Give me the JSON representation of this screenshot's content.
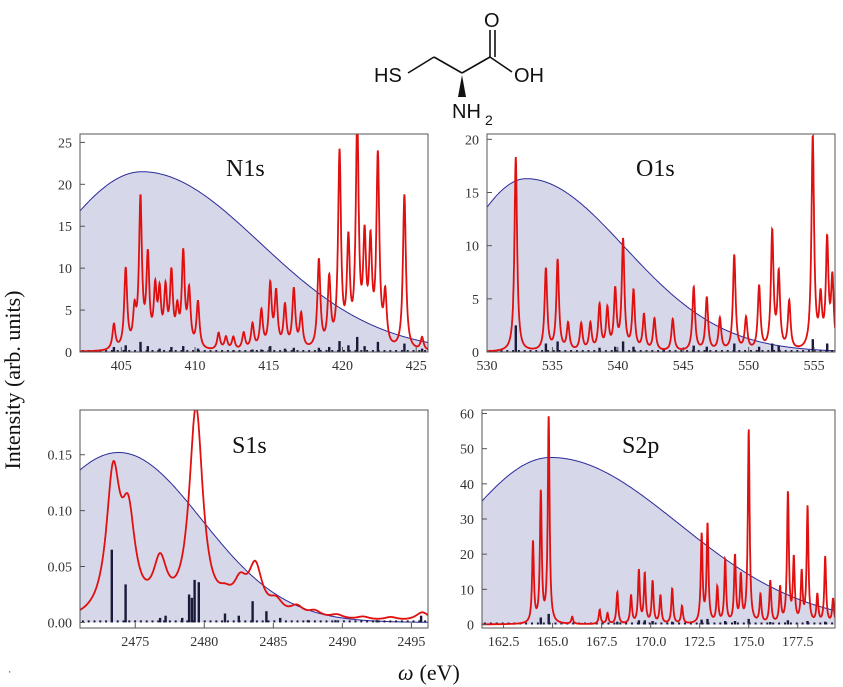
{
  "molecule": {
    "label_hs": "HS",
    "label_o": "O",
    "label_oh": "OH",
    "label_nh": "NH",
    "label_sub2": "2"
  },
  "figure": {
    "ylabel": "Intensity (arb. units)",
    "xlabel_symbol": "ω",
    "xlabel_unit": "(eV)",
    "corner_mark": "⸱"
  },
  "colors": {
    "envelope_fill": "#d7d7ea",
    "envelope_line": "#2a2a9a",
    "spectrum": "#e01010",
    "sticks": "#1a1a3a"
  },
  "chart_data": [
    {
      "type": "line",
      "title": "N1s",
      "xlim": [
        402.2,
        425.8
      ],
      "ylim": [
        0,
        26
      ],
      "xticks": [
        405,
        410,
        415,
        420,
        425
      ],
      "xtick_labels": [
        "405",
        "410",
        "415",
        "420",
        "425"
      ],
      "yticks": [
        0,
        5,
        10,
        15,
        20,
        25
      ],
      "ytick_labels": [
        "0",
        "5",
        "10",
        "15",
        "20",
        "25"
      ],
      "envelope": {
        "center": 406.4,
        "peak": 21.5,
        "sigma_left": 6.0,
        "sigma_right": 8.0
      },
      "peaks": [
        {
          "x": 404.5,
          "h": 3.0
        },
        {
          "x": 405.3,
          "h": 9.5
        },
        {
          "x": 405.9,
          "h": 4.0
        },
        {
          "x": 406.3,
          "h": 17.5
        },
        {
          "x": 406.8,
          "h": 10.5
        },
        {
          "x": 407.3,
          "h": 6.5
        },
        {
          "x": 407.6,
          "h": 6.0
        },
        {
          "x": 408.0,
          "h": 6.5
        },
        {
          "x": 408.4,
          "h": 8.5
        },
        {
          "x": 408.8,
          "h": 4.0
        },
        {
          "x": 409.2,
          "h": 11.0
        },
        {
          "x": 409.6,
          "h": 6.5
        },
        {
          "x": 410.2,
          "h": 5.5
        },
        {
          "x": 411.6,
          "h": 2.0
        },
        {
          "x": 412.1,
          "h": 1.5
        },
        {
          "x": 412.6,
          "h": 1.5
        },
        {
          "x": 413.3,
          "h": 2.0
        },
        {
          "x": 413.9,
          "h": 3.0
        },
        {
          "x": 414.5,
          "h": 4.5
        },
        {
          "x": 415.1,
          "h": 7.5
        },
        {
          "x": 415.5,
          "h": 6.5
        },
        {
          "x": 416.1,
          "h": 5.0
        },
        {
          "x": 416.7,
          "h": 7.0
        },
        {
          "x": 417.2,
          "h": 4.0
        },
        {
          "x": 418.4,
          "h": 10.5
        },
        {
          "x": 419.1,
          "h": 8.0
        },
        {
          "x": 419.8,
          "h": 23.0
        },
        {
          "x": 420.4,
          "h": 12.0
        },
        {
          "x": 421.0,
          "h": 26.5
        },
        {
          "x": 421.5,
          "h": 12.0
        },
        {
          "x": 421.9,
          "h": 11.5
        },
        {
          "x": 422.4,
          "h": 22.5
        },
        {
          "x": 422.9,
          "h": 6.0
        },
        {
          "x": 424.2,
          "h": 18.5
        },
        {
          "x": 425.4,
          "h": 1.5
        }
      ],
      "sticks": [
        {
          "x": 404.5,
          "h": 0.6
        },
        {
          "x": 405.3,
          "h": 0.8
        },
        {
          "x": 406.3,
          "h": 1.2
        },
        {
          "x": 406.8,
          "h": 0.7
        },
        {
          "x": 407.6,
          "h": 0.4
        },
        {
          "x": 408.4,
          "h": 0.6
        },
        {
          "x": 409.2,
          "h": 0.7
        },
        {
          "x": 410.2,
          "h": 0.4
        },
        {
          "x": 412.6,
          "h": 0.2
        },
        {
          "x": 413.9,
          "h": 0.3
        },
        {
          "x": 414.5,
          "h": 0.3
        },
        {
          "x": 415.1,
          "h": 0.7
        },
        {
          "x": 416.1,
          "h": 0.4
        },
        {
          "x": 416.7,
          "h": 0.5
        },
        {
          "x": 418.4,
          "h": 0.5
        },
        {
          "x": 419.1,
          "h": 0.6
        },
        {
          "x": 419.8,
          "h": 1.3
        },
        {
          "x": 420.4,
          "h": 0.8
        },
        {
          "x": 421.0,
          "h": 1.8
        },
        {
          "x": 421.5,
          "h": 0.7
        },
        {
          "x": 422.4,
          "h": 1.2
        },
        {
          "x": 424.2,
          "h": 1.0
        },
        {
          "x": 425.4,
          "h": 0.4
        }
      ],
      "peak_width": 0.12
    },
    {
      "type": "line",
      "title": "O1s",
      "xlim": [
        530.0,
        556.6
      ],
      "ylim": [
        0,
        20.5
      ],
      "xticks": [
        530,
        535,
        540,
        545,
        550,
        555
      ],
      "xtick_labels": [
        "530",
        "535",
        "540",
        "545",
        "550",
        "555"
      ],
      "yticks": [
        0,
        5,
        10,
        15,
        20
      ],
      "ytick_labels": [
        "0",
        "5",
        "10",
        "15",
        "20"
      ],
      "envelope": {
        "center": 533.0,
        "peak": 16.3,
        "sigma_left": 5.0,
        "sigma_right": 7.5
      },
      "peaks": [
        {
          "x": 532.2,
          "h": 18.3
        },
        {
          "x": 534.5,
          "h": 7.7
        },
        {
          "x": 535.4,
          "h": 8.5
        },
        {
          "x": 536.2,
          "h": 2.5
        },
        {
          "x": 537.2,
          "h": 2.5
        },
        {
          "x": 537.9,
          "h": 2.5
        },
        {
          "x": 538.6,
          "h": 4.2
        },
        {
          "x": 539.2,
          "h": 3.8
        },
        {
          "x": 539.8,
          "h": 5.5
        },
        {
          "x": 540.4,
          "h": 10.3
        },
        {
          "x": 541.2,
          "h": 5.5
        },
        {
          "x": 542.0,
          "h": 3.3
        },
        {
          "x": 542.8,
          "h": 3.0
        },
        {
          "x": 544.2,
          "h": 3.0
        },
        {
          "x": 545.8,
          "h": 6.0
        },
        {
          "x": 546.8,
          "h": 5.0
        },
        {
          "x": 547.8,
          "h": 3.0
        },
        {
          "x": 548.9,
          "h": 9.0
        },
        {
          "x": 549.8,
          "h": 3.0
        },
        {
          "x": 550.8,
          "h": 6.0
        },
        {
          "x": 551.8,
          "h": 11.0
        },
        {
          "x": 552.3,
          "h": 7.0
        },
        {
          "x": 553.1,
          "h": 4.5
        },
        {
          "x": 554.9,
          "h": 20.0
        },
        {
          "x": 555.5,
          "h": 4.5
        },
        {
          "x": 556.0,
          "h": 10.0
        },
        {
          "x": 556.4,
          "h": 6.5
        }
      ],
      "sticks": [
        {
          "x": 532.2,
          "h": 2.5
        },
        {
          "x": 534.5,
          "h": 0.8
        },
        {
          "x": 535.4,
          "h": 1.0
        },
        {
          "x": 538.6,
          "h": 0.4
        },
        {
          "x": 539.8,
          "h": 0.5
        },
        {
          "x": 540.4,
          "h": 1.0
        },
        {
          "x": 541.2,
          "h": 0.5
        },
        {
          "x": 543.5,
          "h": 0.3
        },
        {
          "x": 545.8,
          "h": 0.6
        },
        {
          "x": 546.8,
          "h": 0.5
        },
        {
          "x": 548.9,
          "h": 0.8
        },
        {
          "x": 550.8,
          "h": 0.5
        },
        {
          "x": 551.8,
          "h": 0.8
        },
        {
          "x": 552.3,
          "h": 0.6
        },
        {
          "x": 554.9,
          "h": 1.2
        },
        {
          "x": 556.0,
          "h": 0.8
        }
      ],
      "peak_width": 0.12
    },
    {
      "type": "line",
      "title": "S1s",
      "xlim": [
        2471.0,
        2496.2
      ],
      "ylim": [
        -0.005,
        0.19
      ],
      "xticks": [
        2475,
        2480,
        2485,
        2490,
        2495
      ],
      "xtick_labels": [
        "2475",
        "2480",
        "2485",
        "2490",
        "2495"
      ],
      "yticks": [
        0.0,
        0.05,
        0.1,
        0.15
      ],
      "ytick_labels": [
        "0.00",
        "0.05",
        "0.10",
        "0.15"
      ],
      "envelope": {
        "center": 2473.8,
        "peak": 0.152,
        "sigma_left": 6.0,
        "sigma_right": 6.0
      },
      "peaks": [
        {
          "x": 2473.4,
          "h": 0.122
        },
        {
          "x": 2474.5,
          "h": 0.08
        },
        {
          "x": 2476.8,
          "h": 0.043
        },
        {
          "x": 2479.4,
          "h": 0.186
        },
        {
          "x": 2481.5,
          "h": 0.01
        },
        {
          "x": 2482.6,
          "h": 0.024
        },
        {
          "x": 2483.7,
          "h": 0.042
        },
        {
          "x": 2485.2,
          "h": 0.012
        },
        {
          "x": 2486.7,
          "h": 0.009
        },
        {
          "x": 2488.0,
          "h": 0.006
        },
        {
          "x": 2489.6,
          "h": 0.004
        },
        {
          "x": 2491.5,
          "h": 0.003
        },
        {
          "x": 2493.5,
          "h": 0.003
        },
        {
          "x": 2495.8,
          "h": 0.008
        }
      ],
      "sticks": [
        {
          "x": 2473.3,
          "h": 0.065
        },
        {
          "x": 2474.3,
          "h": 0.034
        },
        {
          "x": 2476.8,
          "h": 0.004
        },
        {
          "x": 2477.2,
          "h": 0.006
        },
        {
          "x": 2478.4,
          "h": 0.004
        },
        {
          "x": 2478.9,
          "h": 0.025
        },
        {
          "x": 2479.1,
          "h": 0.022
        },
        {
          "x": 2479.3,
          "h": 0.038
        },
        {
          "x": 2479.6,
          "h": 0.036
        },
        {
          "x": 2481.5,
          "h": 0.008
        },
        {
          "x": 2482.5,
          "h": 0.006
        },
        {
          "x": 2483.5,
          "h": 0.019
        },
        {
          "x": 2484.5,
          "h": 0.01
        },
        {
          "x": 2485.5,
          "h": 0.004
        },
        {
          "x": 2487.5,
          "h": 0.002
        },
        {
          "x": 2489.5,
          "h": 0.002
        },
        {
          "x": 2492.5,
          "h": 0.002
        },
        {
          "x": 2495.7,
          "h": 0.006
        }
      ],
      "peak_width": 0.6
    },
    {
      "type": "line",
      "title": "S2p",
      "xlim": [
        161.4,
        179.4
      ],
      "ylim": [
        -1,
        61
      ],
      "xticks": [
        162.5,
        165.0,
        167.5,
        170.0,
        172.5,
        175.0,
        177.5
      ],
      "xtick_labels": [
        "162.5",
        "165.0",
        "167.5",
        "170.0",
        "172.5",
        "175.0",
        "177.5"
      ],
      "yticks": [
        0,
        10,
        20,
        30,
        40,
        50,
        60
      ],
      "ytick_labels": [
        "0",
        "10",
        "20",
        "30",
        "40",
        "50",
        "60"
      ],
      "envelope": {
        "center": 164.9,
        "peak": 47.5,
        "sigma_left": 4.5,
        "sigma_right": 6.5
      },
      "peaks": [
        {
          "x": 164.0,
          "h": 23.0
        },
        {
          "x": 164.4,
          "h": 37.0
        },
        {
          "x": 164.8,
          "h": 59.0
        },
        {
          "x": 166.0,
          "h": 2.0
        },
        {
          "x": 167.4,
          "h": 4.0
        },
        {
          "x": 167.8,
          "h": 3.0
        },
        {
          "x": 168.3,
          "h": 9.0
        },
        {
          "x": 169.0,
          "h": 8.0
        },
        {
          "x": 169.4,
          "h": 15.0
        },
        {
          "x": 169.7,
          "h": 14.0
        },
        {
          "x": 170.1,
          "h": 12.0
        },
        {
          "x": 170.5,
          "h": 8.0
        },
        {
          "x": 171.1,
          "h": 10.0
        },
        {
          "x": 171.6,
          "h": 5.0
        },
        {
          "x": 172.6,
          "h": 25.0
        },
        {
          "x": 172.9,
          "h": 28.0
        },
        {
          "x": 173.4,
          "h": 10.0
        },
        {
          "x": 173.8,
          "h": 18.0
        },
        {
          "x": 174.3,
          "h": 19.0
        },
        {
          "x": 174.6,
          "h": 13.0
        },
        {
          "x": 175.0,
          "h": 55.0
        },
        {
          "x": 175.6,
          "h": 8.0
        },
        {
          "x": 176.1,
          "h": 12.0
        },
        {
          "x": 176.6,
          "h": 10.0
        },
        {
          "x": 177.0,
          "h": 37.0
        },
        {
          "x": 177.3,
          "h": 18.0
        },
        {
          "x": 177.7,
          "h": 14.0
        },
        {
          "x": 178.0,
          "h": 33.0
        },
        {
          "x": 178.5,
          "h": 8.0
        },
        {
          "x": 178.9,
          "h": 19.0
        },
        {
          "x": 179.3,
          "h": 7.0
        }
      ],
      "sticks": [
        {
          "x": 164.4,
          "h": 2.0
        },
        {
          "x": 164.8,
          "h": 3.0
        },
        {
          "x": 168.3,
          "h": 0.8
        },
        {
          "x": 169.4,
          "h": 1.2
        },
        {
          "x": 169.7,
          "h": 1.2
        },
        {
          "x": 170.1,
          "h": 1.0
        },
        {
          "x": 171.1,
          "h": 0.8
        },
        {
          "x": 172.6,
          "h": 1.4
        },
        {
          "x": 172.9,
          "h": 1.6
        },
        {
          "x": 173.8,
          "h": 1.0
        },
        {
          "x": 174.3,
          "h": 1.0
        },
        {
          "x": 175.0,
          "h": 1.6
        },
        {
          "x": 176.1,
          "h": 0.7
        },
        {
          "x": 177.0,
          "h": 1.2
        },
        {
          "x": 178.0,
          "h": 1.0
        },
        {
          "x": 178.9,
          "h": 0.8
        }
      ],
      "peak_width": 0.055
    }
  ]
}
